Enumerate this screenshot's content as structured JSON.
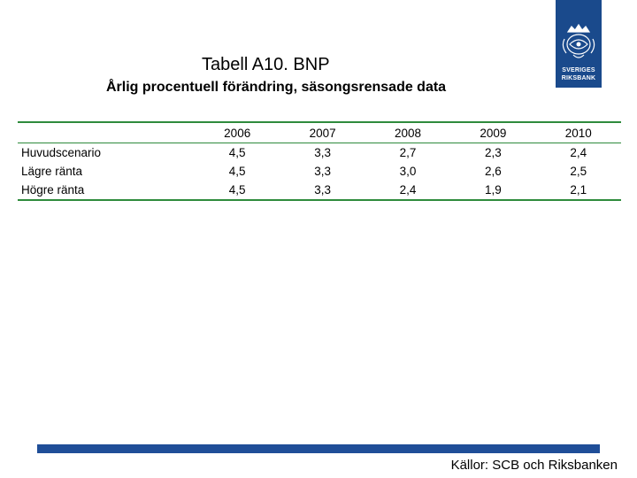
{
  "header": {
    "title": "Tabell A10. BNP",
    "subtitle": "Årlig procentuell förändring, säsongsrensade data"
  },
  "logo": {
    "line1": "SVERIGES",
    "line2": "RIKSBANK",
    "color": "#1a4a8c"
  },
  "table": {
    "columns": [
      "",
      "2006",
      "2007",
      "2008",
      "2009",
      "2010"
    ],
    "rows": [
      {
        "label": "Huvudscenario",
        "values": [
          "4,5",
          "3,3",
          "2,7",
          "2,3",
          "2,4"
        ]
      },
      {
        "label": "Lägre ränta",
        "values": [
          "4,5",
          "3,3",
          "3,0",
          "2,6",
          "2,5"
        ]
      },
      {
        "label": "Högre ränta",
        "values": [
          "4,5",
          "3,3",
          "2,4",
          "1,9",
          "2,1"
        ]
      }
    ],
    "rule_color": "#2e8b3c"
  },
  "footer": {
    "source": "Källor: SCB och Riksbanken",
    "bar_color": "#1f4e98"
  }
}
